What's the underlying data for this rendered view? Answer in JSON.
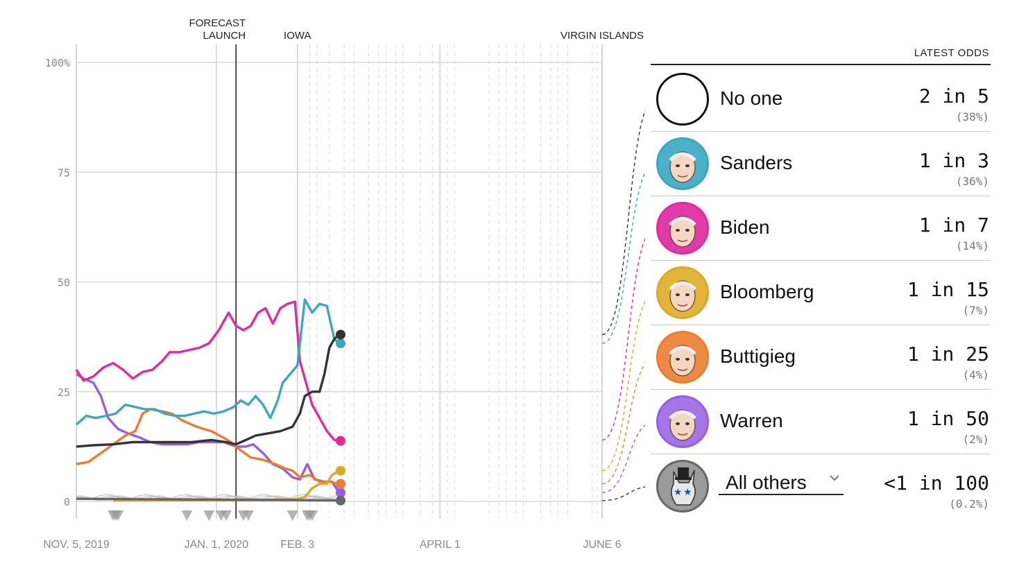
{
  "chart_data": {
    "type": "line",
    "ylim": [
      0,
      100
    ],
    "ytick_labels": [
      "0",
      "25",
      "50",
      "75",
      "100%"
    ],
    "yticks": [
      0,
      25,
      50,
      75,
      100
    ],
    "x_range": [
      "2019-11-05",
      "2020-06-06"
    ],
    "xtick_labels": [
      {
        "label": "NOV. 5, 2019",
        "date": "2019-11-05"
      },
      {
        "label": "JAN. 1, 2020",
        "date": "2020-01-01"
      },
      {
        "label": "FEB. 3",
        "date": "2020-02-03"
      },
      {
        "label": "APRIL 1",
        "date": "2020-04-01"
      },
      {
        "label": "JUNE 6",
        "date": "2020-06-06"
      }
    ],
    "annotations": [
      {
        "label": "FORECAST\nLAUNCH",
        "date": "2020-01-09",
        "style": "solid-dark"
      },
      {
        "label": "IOWA",
        "date": "2020-02-03",
        "style": "solid-light"
      },
      {
        "label": "VIRGIN ISLANDS",
        "date": "2020-06-06",
        "style": "solid-light"
      }
    ],
    "series": [
      {
        "name": "Warren",
        "color": "#9a5ce0",
        "points": [
          [
            "2019-11-05",
            29
          ],
          [
            "2019-11-08",
            28
          ],
          [
            "2019-11-12",
            27
          ],
          [
            "2019-11-15",
            24
          ],
          [
            "2019-11-18",
            19
          ],
          [
            "2019-11-22",
            16.5
          ],
          [
            "2019-11-26",
            15.5
          ],
          [
            "2019-12-01",
            14.5
          ],
          [
            "2019-12-05",
            13.5
          ],
          [
            "2019-12-10",
            13
          ],
          [
            "2019-12-15",
            13
          ],
          [
            "2019-12-20",
            13
          ],
          [
            "2019-12-25",
            13.5
          ],
          [
            "2019-12-30",
            13.5
          ],
          [
            "2020-01-04",
            13.5
          ],
          [
            "2020-01-09",
            12.5
          ],
          [
            "2020-01-13",
            12.5
          ],
          [
            "2020-01-16",
            13
          ],
          [
            "2020-01-20",
            11
          ],
          [
            "2020-01-24",
            8.5
          ],
          [
            "2020-01-28",
            7.5
          ],
          [
            "2020-02-01",
            5.5
          ],
          [
            "2020-02-04",
            5
          ],
          [
            "2020-02-07",
            8.5
          ],
          [
            "2020-02-10",
            5
          ],
          [
            "2020-02-14",
            4.5
          ],
          [
            "2020-02-17",
            4.5
          ],
          [
            "2020-02-20",
            2
          ]
        ]
      },
      {
        "name": "Buttigieg",
        "color": "#ee7c2e",
        "points": [
          [
            "2019-11-05",
            8.5
          ],
          [
            "2019-11-10",
            9
          ],
          [
            "2019-11-15",
            11
          ],
          [
            "2019-11-20",
            13
          ],
          [
            "2019-11-25",
            15
          ],
          [
            "2019-11-29",
            16
          ],
          [
            "2019-12-02",
            20
          ],
          [
            "2019-12-05",
            21
          ],
          [
            "2019-12-10",
            20.5
          ],
          [
            "2019-12-14",
            20
          ],
          [
            "2019-12-18",
            18.5
          ],
          [
            "2019-12-24",
            17
          ],
          [
            "2019-12-30",
            16
          ],
          [
            "2020-01-04",
            14.5
          ],
          [
            "2020-01-07",
            13.5
          ],
          [
            "2020-01-10",
            12
          ],
          [
            "2020-01-15",
            10
          ],
          [
            "2020-01-20",
            9.5
          ],
          [
            "2020-01-25",
            8.5
          ],
          [
            "2020-01-29",
            7.5
          ],
          [
            "2020-02-01",
            7
          ],
          [
            "2020-02-04",
            5.5
          ],
          [
            "2020-02-08",
            6
          ],
          [
            "2020-02-12",
            4.5
          ],
          [
            "2020-02-16",
            4.5
          ],
          [
            "2020-02-20",
            4
          ]
        ]
      },
      {
        "name": "Biden",
        "color": "#e4299e",
        "points": [
          [
            "2019-11-05",
            30
          ],
          [
            "2019-11-08",
            27.5
          ],
          [
            "2019-11-12",
            28.5
          ],
          [
            "2019-11-16",
            30.5
          ],
          [
            "2019-11-20",
            31.5
          ],
          [
            "2019-11-24",
            30
          ],
          [
            "2019-11-28",
            28
          ],
          [
            "2019-12-02",
            29.5
          ],
          [
            "2019-12-06",
            30
          ],
          [
            "2019-12-10",
            32
          ],
          [
            "2019-12-13",
            34
          ],
          [
            "2019-12-17",
            34
          ],
          [
            "2019-12-21",
            34.5
          ],
          [
            "2019-12-25",
            35
          ],
          [
            "2019-12-29",
            36
          ],
          [
            "2020-01-02",
            39
          ],
          [
            "2020-01-06",
            43
          ],
          [
            "2020-01-09",
            40
          ],
          [
            "2020-01-12",
            39
          ],
          [
            "2020-01-15",
            40
          ],
          [
            "2020-01-18",
            43
          ],
          [
            "2020-01-21",
            44
          ],
          [
            "2020-01-24",
            40.5
          ],
          [
            "2020-01-27",
            44
          ],
          [
            "2020-01-30",
            45
          ],
          [
            "2020-02-02",
            45.5
          ],
          [
            "2020-02-04",
            32
          ],
          [
            "2020-02-06",
            28
          ],
          [
            "2020-02-09",
            22
          ],
          [
            "2020-02-12",
            19
          ],
          [
            "2020-02-15",
            16
          ],
          [
            "2020-02-18",
            14
          ],
          [
            "2020-02-20",
            13.8
          ]
        ]
      },
      {
        "name": "Sanders",
        "color": "#3aa6c0",
        "points": [
          [
            "2019-11-05",
            17.5
          ],
          [
            "2019-11-09",
            19.5
          ],
          [
            "2019-11-13",
            19
          ],
          [
            "2019-11-17",
            19.5
          ],
          [
            "2019-11-21",
            20
          ],
          [
            "2019-11-25",
            22
          ],
          [
            "2019-11-29",
            21.5
          ],
          [
            "2019-12-03",
            21
          ],
          [
            "2019-12-07",
            21
          ],
          [
            "2019-12-11",
            20
          ],
          [
            "2019-12-15",
            19.5
          ],
          [
            "2019-12-19",
            19.5
          ],
          [
            "2019-12-23",
            20
          ],
          [
            "2019-12-27",
            20.5
          ],
          [
            "2019-12-31",
            20
          ],
          [
            "2020-01-04",
            20.5
          ],
          [
            "2020-01-08",
            21.5
          ],
          [
            "2020-01-11",
            23
          ],
          [
            "2020-01-14",
            22
          ],
          [
            "2020-01-17",
            24
          ],
          [
            "2020-01-20",
            22
          ],
          [
            "2020-01-23",
            19
          ],
          [
            "2020-01-26",
            23
          ],
          [
            "2020-01-28",
            27
          ],
          [
            "2020-01-31",
            29
          ],
          [
            "2020-02-03",
            31
          ],
          [
            "2020-02-06",
            46
          ],
          [
            "2020-02-09",
            43
          ],
          [
            "2020-02-12",
            45
          ],
          [
            "2020-02-15",
            44.5
          ],
          [
            "2020-02-18",
            37
          ],
          [
            "2020-02-20",
            36
          ]
        ]
      },
      {
        "name": "No one",
        "color": "#333333",
        "points": [
          [
            "2019-11-05",
            12.5
          ],
          [
            "2019-11-12",
            12.8
          ],
          [
            "2019-11-20",
            13
          ],
          [
            "2019-11-28",
            13.5
          ],
          [
            "2019-12-06",
            13.5
          ],
          [
            "2019-12-14",
            13.5
          ],
          [
            "2019-12-22",
            13.5
          ],
          [
            "2019-12-30",
            14
          ],
          [
            "2020-01-05",
            13.5
          ],
          [
            "2020-01-09",
            13
          ],
          [
            "2020-01-13",
            14
          ],
          [
            "2020-01-17",
            15
          ],
          [
            "2020-01-22",
            15.5
          ],
          [
            "2020-01-27",
            16
          ],
          [
            "2020-02-01",
            17
          ],
          [
            "2020-02-04",
            20
          ],
          [
            "2020-02-06",
            24
          ],
          [
            "2020-02-09",
            25
          ],
          [
            "2020-02-12",
            25
          ],
          [
            "2020-02-14",
            29
          ],
          [
            "2020-02-16",
            35
          ],
          [
            "2020-02-18",
            37
          ],
          [
            "2020-02-20",
            38
          ]
        ]
      },
      {
        "name": "Bloomberg",
        "color": "#dda826",
        "points": [
          [
            "2019-11-20",
            0.2
          ],
          [
            "2019-12-15",
            0.3
          ],
          [
            "2020-01-10",
            0.3
          ],
          [
            "2020-01-25",
            0.4
          ],
          [
            "2020-02-03",
            0.5
          ],
          [
            "2020-02-06",
            1
          ],
          [
            "2020-02-09",
            3
          ],
          [
            "2020-02-12",
            4
          ],
          [
            "2020-02-15",
            4
          ],
          [
            "2020-02-17",
            6
          ],
          [
            "2020-02-20",
            7
          ]
        ]
      },
      {
        "name": "All others",
        "color": "#666666",
        "points": [
          [
            "2019-11-05",
            0.6
          ],
          [
            "2019-12-01",
            0.5
          ],
          [
            "2020-01-01",
            0.4
          ],
          [
            "2020-02-01",
            0.3
          ],
          [
            "2020-02-20",
            0.2
          ]
        ]
      }
    ]
  },
  "panel": {
    "title": "LATEST ODDS",
    "candidates": [
      {
        "name": "No one",
        "odds": "2 in 5",
        "pct": "(38%)",
        "avatar": "empty-circle-icon",
        "ring": "#111111",
        "bg": "#ffffff",
        "line_color": "#333333",
        "chart_value": 38
      },
      {
        "name": "Sanders",
        "odds": "1 in 3",
        "pct": "(36%)",
        "avatar": "sanders-portrait",
        "ring": "#3aa6c0",
        "bg": "#4ab1c9",
        "line_color": "#3aa6c0",
        "chart_value": 36
      },
      {
        "name": "Biden",
        "odds": "1 in 7",
        "pct": "(14%)",
        "avatar": "biden-portrait",
        "ring": "#e4299e",
        "bg": "#e23ba7",
        "line_color": "#e4299e",
        "chart_value": 14
      },
      {
        "name": "Bloomberg",
        "odds": "1 in 15",
        "pct": "(7%)",
        "avatar": "bloomberg-portrait",
        "ring": "#dda826",
        "bg": "#e2b43a",
        "line_color": "#dda826",
        "chart_value": 7
      },
      {
        "name": "Buttigieg",
        "odds": "1 in 25",
        "pct": "(4%)",
        "avatar": "buttigieg-portrait",
        "ring": "#ee7c2e",
        "bg": "#ee8a44",
        "line_color": "#ee7c2e",
        "chart_value": 4
      },
      {
        "name": "Warren",
        "odds": "1 in 50",
        "pct": "(2%)",
        "avatar": "warren-portrait",
        "ring": "#9a5ce0",
        "bg": "#a476e6",
        "line_color": "#9a5ce0",
        "chart_value": 2
      },
      {
        "name": "All others",
        "odds": "<1 in 100",
        "pct": "(0.2%)",
        "avatar": "donkey-icon",
        "ring": "#666666",
        "bg": "#9b9b9b",
        "line_color": "#333333",
        "chart_value": 0.2,
        "dropdown": true
      }
    ]
  }
}
